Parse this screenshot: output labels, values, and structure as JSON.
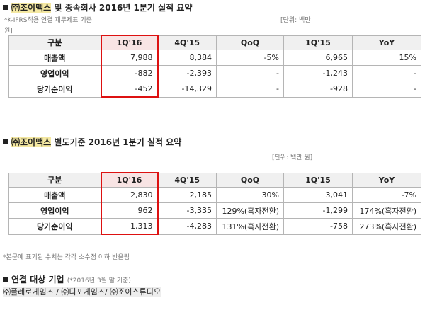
{
  "section1": {
    "title_prefix": "㈜조이맥스",
    "title_rest": " 및 종속회사 2016년 1분기 실적 요약",
    "note_left": "*K-IFRS적용 연결 재무제표 기준",
    "note_unit_a": "[단위: 백만",
    "note_unit_b": "원]",
    "headers": [
      "구분",
      "1Q'16",
      "4Q'15",
      "QoQ",
      "1Q'15",
      "YoY"
    ],
    "rows": [
      [
        "매출액",
        "7,988",
        "8,384",
        "-5%",
        "6,965",
        "15%"
      ],
      [
        "영업이익",
        "-882",
        "-2,393",
        "-",
        "-1,243",
        "-"
      ],
      [
        "당기순이익",
        "-452",
        "-14,329",
        "-",
        "-928",
        "-"
      ]
    ]
  },
  "section2": {
    "title_prefix": "㈜조이맥스",
    "title_rest": " 별도기준 2016년 1분기 실적 요약",
    "note_unit": "[단위: 백만 원]",
    "headers": [
      "구분",
      "1Q'16",
      "4Q'15",
      "QoQ",
      "1Q'15",
      "YoY"
    ],
    "rows": [
      [
        "매출액",
        "2,830",
        "2,185",
        "30%",
        "3,041",
        "-7%"
      ],
      [
        "영업이익",
        "962",
        "-3,335",
        "129%(흑자전환)",
        "-1,299",
        "174%(흑자전환)"
      ],
      [
        "당기순이익",
        "1,313",
        "-4,283",
        "131%(흑자전환)",
        "-758",
        "273%(흑자전환)"
      ]
    ]
  },
  "footnote": "*본문에 표기된 수치는 각각 소수점 이하 반올림",
  "section3": {
    "title": "연결 대상 기업",
    "title_note": "(*2016년 3월 말 기준)",
    "companies": "㈜플레로게임즈 / ㈜디포게임즈/ ㈜조이스튜디오"
  }
}
